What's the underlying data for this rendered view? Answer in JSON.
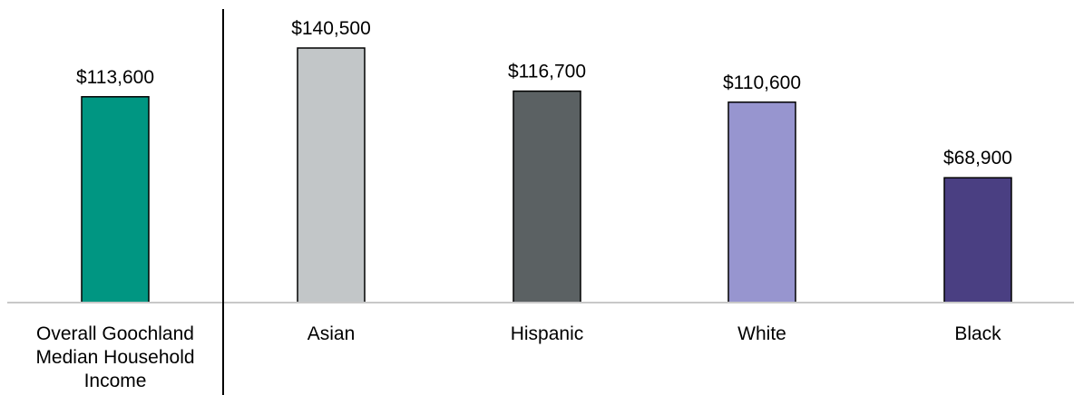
{
  "chart_data": {
    "type": "bar",
    "title": "",
    "xlabel": "",
    "ylabel": "",
    "ylim": [
      0,
      150000
    ],
    "grid": false,
    "legend": "none",
    "categories": [
      "Overall Goochland Median Household Income",
      "Asian",
      "Hispanic",
      "White",
      "Black"
    ],
    "category_lines": [
      [
        "Overall Goochland",
        "Median Household",
        "Income"
      ],
      [
        "Asian"
      ],
      [
        "Hispanic"
      ],
      [
        "White"
      ],
      [
        "Black"
      ]
    ],
    "values": [
      113600,
      140500,
      116700,
      110600,
      68900
    ],
    "value_labels": [
      "$113,600",
      "$140,500",
      "$116,700",
      "$110,600",
      "$68,900"
    ],
    "colors": [
      "#009682",
      "#c2c6c8",
      "#5b6163",
      "#9795cf",
      "#4a3f82"
    ]
  }
}
